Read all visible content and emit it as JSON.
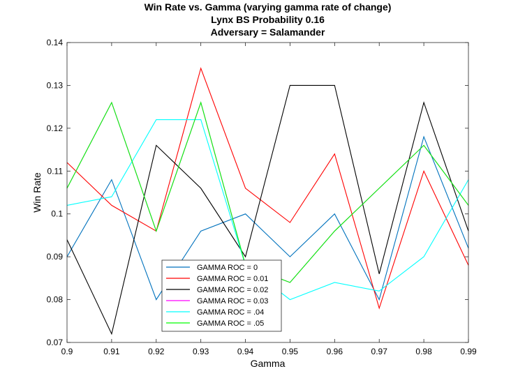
{
  "chart_data": {
    "type": "line",
    "title": [
      "Win Rate vs. Gamma (varying gamma rate of change)",
      "Lynx BS Probability 0.16",
      "Adversary = Salamander"
    ],
    "xlabel": "Gamma",
    "ylabel": "Win Rate",
    "xlim": [
      0.9,
      0.99
    ],
    "ylim": [
      0.07,
      0.14
    ],
    "x": [
      0.9,
      0.91,
      0.92,
      0.93,
      0.94,
      0.95,
      0.96,
      0.97,
      0.98,
      0.99
    ],
    "x_tick_labels": [
      "0.9",
      "0.91",
      "0.92",
      "0.93",
      "0.94",
      "0.95",
      "0.96",
      "0.97",
      "0.98",
      "0.99"
    ],
    "y_ticks": [
      0.07,
      0.08,
      0.09,
      0.1,
      0.11,
      0.12,
      0.13,
      0.14
    ],
    "y_tick_labels": [
      "0.07",
      "0.08",
      "0.09",
      "0.1",
      "0.11",
      "0.12",
      "0.13",
      "0.14"
    ],
    "grid": false,
    "legend_position": "bottom-left",
    "series": [
      {
        "name": "GAMMA ROC = 0",
        "color": "#0072bd",
        "values": [
          0.09,
          0.108,
          0.08,
          0.096,
          0.1,
          0.09,
          0.1,
          0.08,
          0.118,
          0.092
        ]
      },
      {
        "name": "GAMMA ROC = 0.01",
        "color": "#ff0000",
        "values": [
          0.112,
          0.102,
          0.096,
          0.134,
          0.106,
          0.098,
          0.114,
          0.078,
          0.11,
          0.088
        ]
      },
      {
        "name": "GAMMA ROC = 0.02",
        "color": "#000000",
        "values": [
          0.094,
          0.072,
          0.116,
          0.106,
          0.09,
          0.13,
          0.13,
          0.086,
          0.126,
          0.096
        ]
      },
      {
        "name": "GAMMA ROC = 0.03",
        "color": "#ff00ff",
        "values": [
          0.106,
          0.126,
          0.096,
          0.126,
          0.088,
          0.084,
          0.096,
          0.106,
          0.116,
          0.102
        ]
      },
      {
        "name": "GAMMA ROC = .04",
        "color": "#00ffff",
        "values": [
          0.102,
          0.104,
          0.122,
          0.122,
          0.088,
          0.08,
          0.084,
          0.082,
          0.09,
          0.108
        ]
      },
      {
        "name": "GAMMA ROC = .05",
        "color": "#00ff00",
        "values": [
          0.106,
          0.126,
          0.096,
          0.126,
          0.088,
          0.084,
          0.096,
          0.106,
          0.116,
          0.102
        ]
      }
    ]
  }
}
